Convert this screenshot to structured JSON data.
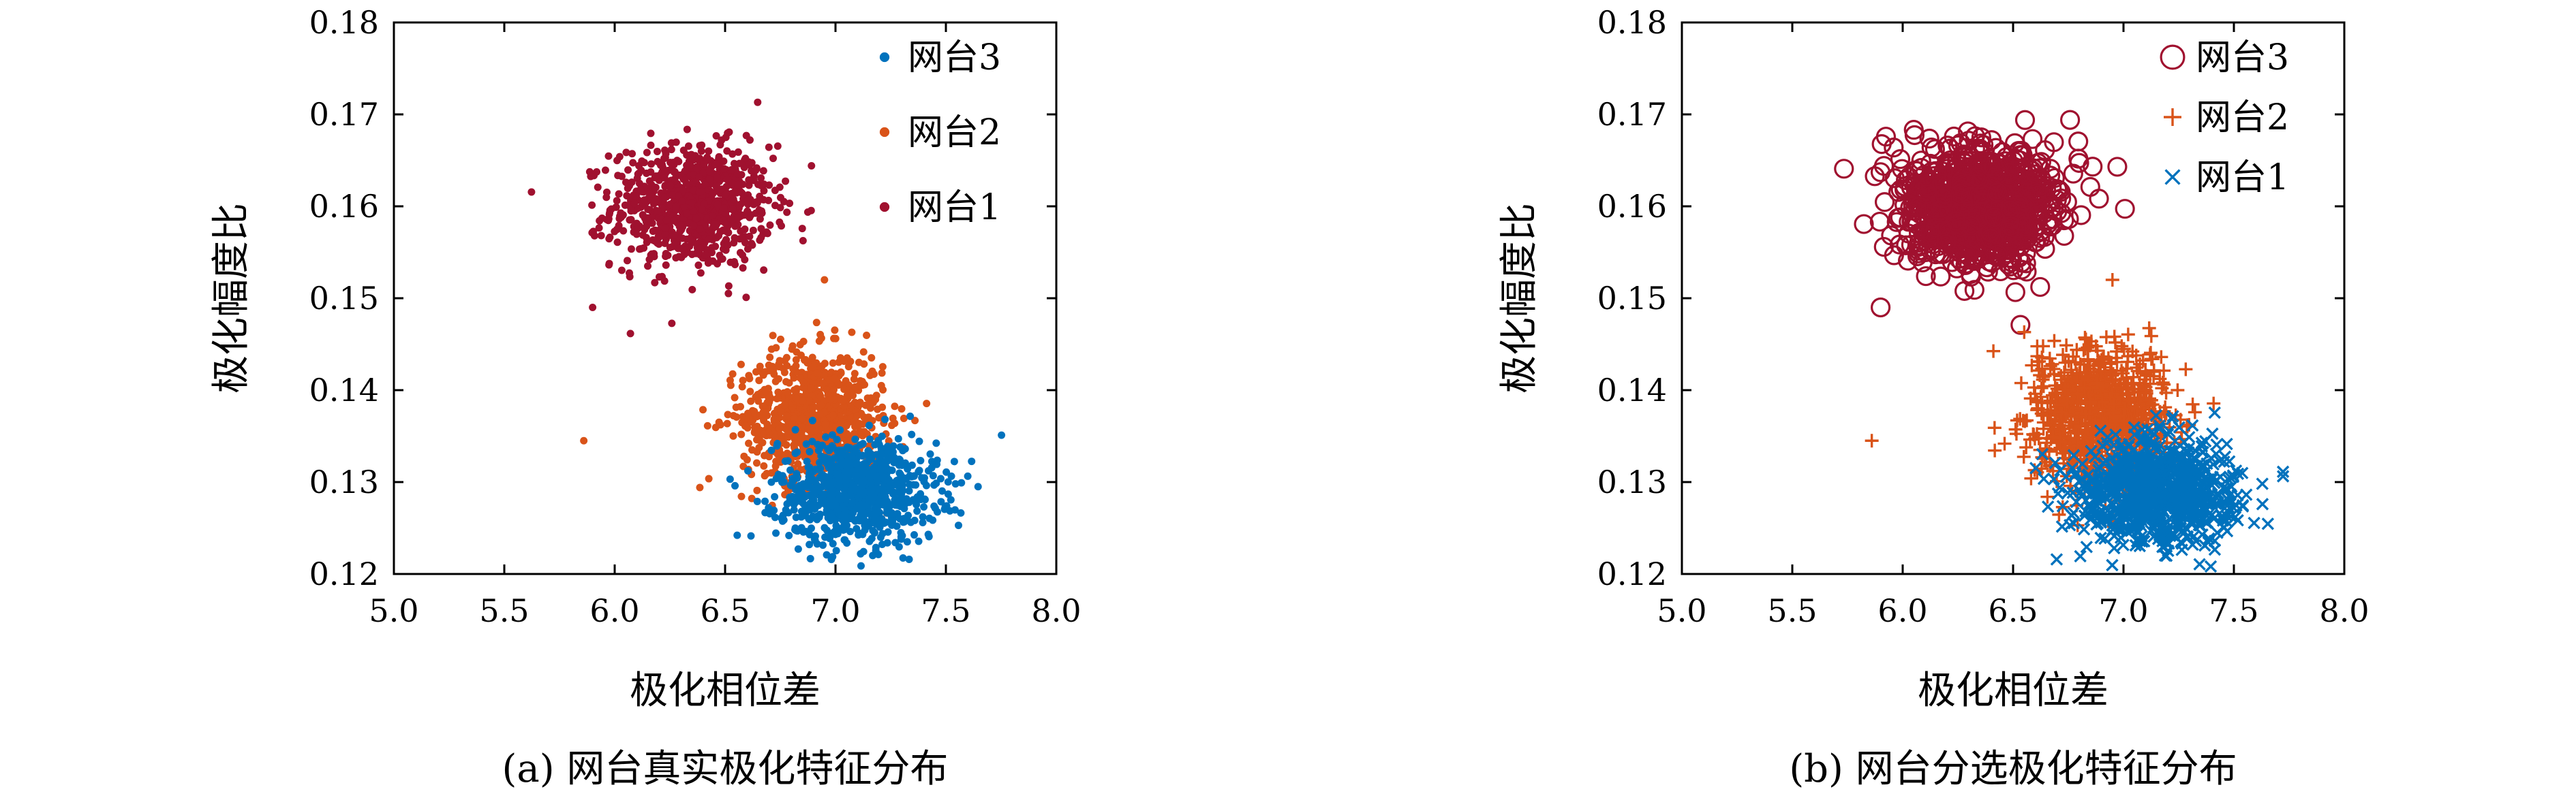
{
  "colors": {
    "platform3": "#a0112f",
    "platform2": "#d95319",
    "platform1": "#0072bd"
  },
  "chart_data": [
    {
      "type": "scatter",
      "title": "",
      "caption": "(a) 网台真实极化特征分布",
      "xlabel": "极化相位差",
      "ylabel": "极化幅度比",
      "xlim": [
        5.0,
        8.0
      ],
      "ylim": [
        0.12,
        0.18
      ],
      "xticks": [
        "5.0",
        "5.5",
        "6.0",
        "6.5",
        "7.0",
        "7.5",
        "8.0"
      ],
      "yticks": [
        "0.12",
        "0.13",
        "0.14",
        "0.15",
        "0.16",
        "0.17",
        "0.18"
      ],
      "grid": false,
      "legend_position": "top-right",
      "legend": [
        {
          "label": "网台3",
          "marker": "dot",
          "color": "#0072bd"
        },
        {
          "label": "网台2",
          "marker": "dot",
          "color": "#d95319"
        },
        {
          "label": "网台1",
          "marker": "dot",
          "color": "#a0112f"
        }
      ],
      "clusters": [
        {
          "name": "网台1",
          "marker": "dot",
          "color": "#a0112f",
          "center": [
            6.35,
            0.16
          ],
          "spread": [
            0.18,
            0.0033
          ]
        },
        {
          "name": "网台2",
          "marker": "dot",
          "color": "#d95319",
          "center": [
            6.9,
            0.137
          ],
          "spread": [
            0.16,
            0.0036
          ]
        },
        {
          "name": "网台3",
          "marker": "dot",
          "color": "#0072bd",
          "center": [
            7.1,
            0.129
          ],
          "spread": [
            0.18,
            0.0028
          ]
        }
      ],
      "outliers": [
        {
          "name": "网台2",
          "x": 5.86,
          "y": 0.1345
        },
        {
          "name": "网台1",
          "x": 5.9,
          "y": 0.149
        },
        {
          "name": "网台2",
          "x": 6.95,
          "y": 0.152
        }
      ]
    },
    {
      "type": "scatter",
      "title": "",
      "caption": "(b) 网台分选极化特征分布",
      "xlabel": "极化相位差",
      "ylabel": "极化幅度比",
      "xlim": [
        5.0,
        8.0
      ],
      "ylim": [
        0.12,
        0.18
      ],
      "xticks": [
        "5.0",
        "5.5",
        "6.0",
        "6.5",
        "7.0",
        "7.5",
        "8.0"
      ],
      "yticks": [
        "0.12",
        "0.13",
        "0.14",
        "0.15",
        "0.16",
        "0.17",
        "0.18"
      ],
      "grid": false,
      "legend_position": "top-right",
      "legend": [
        {
          "label": "网台3",
          "marker": "circle",
          "color": "#a0112f"
        },
        {
          "label": "网台2",
          "marker": "plus",
          "color": "#d95319"
        },
        {
          "label": "网台1",
          "marker": "cross",
          "color": "#0072bd"
        }
      ],
      "clusters": [
        {
          "name": "网台3",
          "marker": "circle",
          "color": "#a0112f",
          "center": [
            6.35,
            0.16
          ],
          "spread": [
            0.18,
            0.0033
          ]
        },
        {
          "name": "网台2",
          "marker": "plus",
          "color": "#d95319",
          "center": [
            6.9,
            0.137
          ],
          "spread": [
            0.16,
            0.0036
          ]
        },
        {
          "name": "网台1",
          "marker": "cross",
          "color": "#0072bd",
          "center": [
            7.15,
            0.129
          ],
          "spread": [
            0.18,
            0.0028
          ]
        }
      ],
      "outliers": [
        {
          "name": "网台2",
          "x": 5.86,
          "y": 0.1345
        },
        {
          "name": "网台3",
          "x": 5.9,
          "y": 0.149
        },
        {
          "name": "网台2",
          "x": 6.95,
          "y": 0.152
        }
      ]
    }
  ]
}
